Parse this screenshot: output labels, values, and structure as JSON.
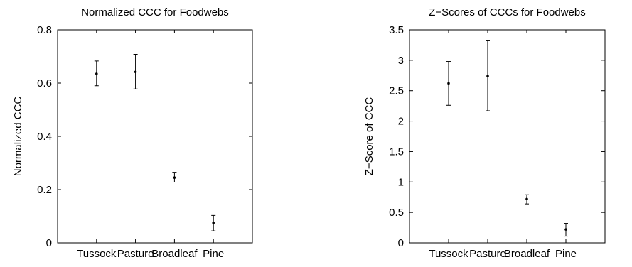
{
  "chart_data": [
    {
      "type": "scatter",
      "title": "Normalized CCC for Foodwebs",
      "xlabel": "",
      "ylabel": "Normalized CCC",
      "categories": [
        "Tussock",
        "Pasture",
        "Broadleaf",
        "Pine"
      ],
      "values": [
        0.635,
        0.642,
        0.245,
        0.075
      ],
      "err_low": [
        0.59,
        0.578,
        0.228,
        0.045
      ],
      "err_high": [
        0.683,
        0.708,
        0.265,
        0.103
      ],
      "ylim": [
        0,
        0.8
      ],
      "yticks": [
        0,
        0.2,
        0.4,
        0.6,
        0.8
      ],
      "ytick_labels": [
        "0",
        "0.2",
        "0.4",
        "0.6",
        "0.8"
      ],
      "grid": false,
      "error_bars": true
    },
    {
      "type": "scatter",
      "title": "Z−Scores of CCCs for Foodwebs",
      "xlabel": "",
      "ylabel": "Z−Score of CCC",
      "categories": [
        "Tussock",
        "Pasture",
        "Broadleaf",
        "Pine"
      ],
      "values": [
        2.62,
        2.74,
        0.72,
        0.22
      ],
      "err_low": [
        2.26,
        2.17,
        0.64,
        0.11
      ],
      "err_high": [
        2.98,
        3.32,
        0.79,
        0.32
      ],
      "ylim": [
        0,
        3.5
      ],
      "yticks": [
        0,
        0.5,
        1,
        1.5,
        2,
        2.5,
        3,
        3.5
      ],
      "ytick_labels": [
        "0",
        "0.5",
        "1",
        "1.5",
        "2",
        "2.5",
        "3",
        "3.5"
      ],
      "grid": false,
      "error_bars": true
    }
  ]
}
